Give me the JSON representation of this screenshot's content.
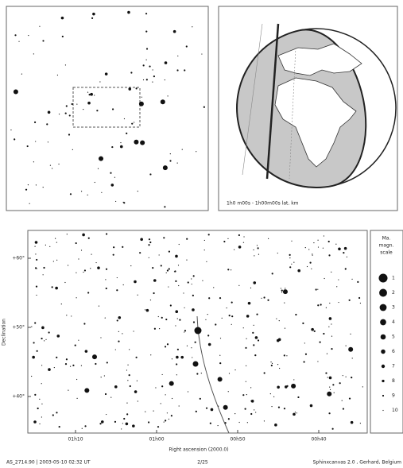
{
  "globe": {
    "caption": "1h0 m00s - 1h00m00s lat. km"
  },
  "chart": {
    "y_axis_title": "Declination",
    "x_axis_title": "Right ascension (2000.0)",
    "y_tick_labels": [
      "+60°",
      "+50°",
      "+40°"
    ],
    "x_tick_labels": [
      "01h10",
      "01h00",
      "00h50",
      "00h40"
    ]
  },
  "legend": {
    "title": [
      "Ma.",
      "magn.",
      "scale"
    ],
    "items": [
      "1",
      "2",
      "3",
      "4",
      "5",
      "6",
      "7",
      "8",
      "9",
      "10"
    ]
  },
  "footer": {
    "left": "AS_2714.90 | 2003-05-10 02:32 UT",
    "center": "2/25",
    "right": "Sphinxcanvas 2.0 , Gerhard, Belgium"
  }
}
